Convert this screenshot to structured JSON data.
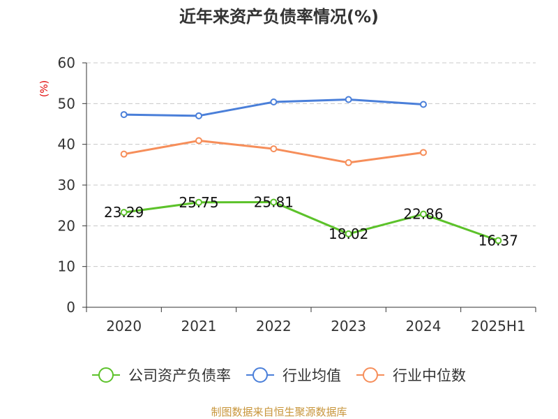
{
  "chart_data": {
    "type": "line",
    "title": "近年来资产负债率情况(%)",
    "ylabel": "(%)",
    "xlabel": "",
    "categories": [
      "2020",
      "2021",
      "2022",
      "2023",
      "2024",
      "2025H1"
    ],
    "ylim": [
      0,
      60
    ],
    "yticks": [
      0,
      10,
      20,
      30,
      40,
      50,
      60
    ],
    "grid": true,
    "legend_position": "bottom",
    "series": [
      {
        "name": "公司资产负债率",
        "color": "#5cc22a",
        "values": [
          23.29,
          25.75,
          25.81,
          18.02,
          22.86,
          16.37
        ],
        "labels": [
          "23.29",
          "25.75",
          "25.81",
          "18.02",
          "22.86",
          "16.37"
        ]
      },
      {
        "name": "行业均值",
        "color": "#4a7fd9",
        "values": [
          47.3,
          47.0,
          50.4,
          51.0,
          49.8,
          null
        ]
      },
      {
        "name": "行业中位数",
        "color": "#f68e5a",
        "values": [
          37.6,
          40.9,
          38.9,
          35.5,
          38.0,
          null
        ]
      }
    ],
    "source": "制图数据来自恒生聚源数据库"
  }
}
